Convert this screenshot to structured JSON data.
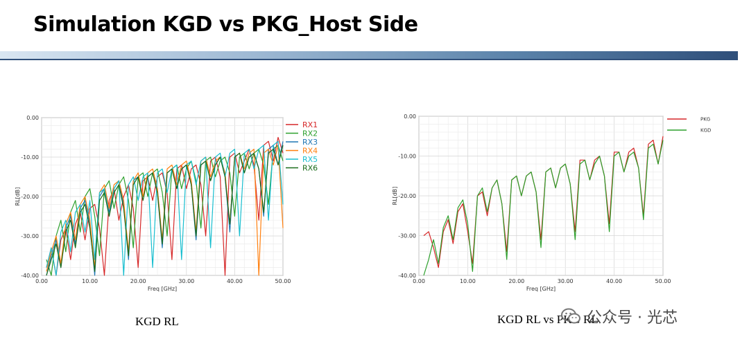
{
  "slide": {
    "title": "Simulation KGD vs PKG_Host Side",
    "caption_left": "KGD RL",
    "caption_right": "KGD RL vs PKG RL",
    "watermark": "公众号 · 光芯"
  },
  "chart_data": [
    {
      "type": "line",
      "xlabel": "Freq [GHz]",
      "ylabel": "RL[dB]",
      "xlim": [
        0,
        50
      ],
      "ylim": [
        -40,
        0
      ],
      "xticks": [
        "0.00",
        "10.00",
        "20.00",
        "30.00",
        "40.00",
        "50.00"
      ],
      "yticks": [
        "0.00",
        "-10.00",
        "-20.00",
        "-30.00",
        "-40.00"
      ],
      "grid": true,
      "legend_position": "right",
      "series": [
        {
          "name": "RX1",
          "color": "#d62728",
          "x": [
            1,
            2,
            3,
            4,
            5,
            6,
            7,
            8,
            9,
            10,
            11,
            12,
            13,
            14,
            15,
            16,
            17,
            18,
            19,
            20,
            21,
            22,
            23,
            24,
            25,
            26,
            27,
            28,
            29,
            30,
            31,
            32,
            33,
            34,
            35,
            36,
            37,
            38,
            39,
            40,
            41,
            42,
            43,
            44,
            45,
            46,
            47,
            48,
            49,
            50
          ],
          "y": [
            -38,
            -33,
            -40,
            -31,
            -28,
            -36,
            -27,
            -24,
            -31,
            -23,
            -22,
            -28,
            -40,
            -21,
            -18,
            -26,
            -20,
            -17,
            -23,
            -38,
            -16,
            -15,
            -21,
            -15,
            -14,
            -19,
            -36,
            -13,
            -12,
            -18,
            -13,
            -12,
            -17,
            -30,
            -11,
            -10,
            -15,
            -40,
            -10,
            -9,
            -14,
            -11,
            -8,
            -12,
            -26,
            -7,
            -6,
            -11,
            -5,
            -9
          ]
        },
        {
          "name": "RX2",
          "color": "#2ca02c",
          "x": [
            1,
            2,
            3,
            4,
            5,
            6,
            7,
            8,
            9,
            10,
            11,
            12,
            13,
            14,
            15,
            16,
            17,
            18,
            19,
            20,
            21,
            22,
            23,
            24,
            25,
            26,
            27,
            28,
            29,
            30,
            31,
            32,
            33,
            34,
            35,
            36,
            37,
            38,
            39,
            40,
            41,
            42,
            43,
            44,
            45,
            46,
            47,
            48,
            49,
            50
          ],
          "y": [
            -36,
            -40,
            -30,
            -26,
            -34,
            -24,
            -21,
            -29,
            -20,
            -18,
            -25,
            -35,
            -18,
            -16,
            -23,
            -17,
            -15,
            -21,
            -33,
            -15,
            -14,
            -20,
            -14,
            -13,
            -19,
            -30,
            -13,
            -12,
            -18,
            -13,
            -11,
            -16,
            -28,
            -11,
            -10,
            -15,
            -11,
            -10,
            -14,
            -25,
            -10,
            -9,
            -13,
            -9,
            -8,
            -12,
            -22,
            -8,
            -7,
            -11
          ]
        },
        {
          "name": "RX3",
          "color": "#1f77b4",
          "x": [
            1,
            2,
            3,
            4,
            5,
            6,
            7,
            8,
            9,
            10,
            11,
            12,
            13,
            14,
            15,
            16,
            17,
            18,
            19,
            20,
            21,
            22,
            23,
            24,
            25,
            26,
            27,
            28,
            29,
            30,
            31,
            32,
            33,
            34,
            35,
            36,
            37,
            38,
            39,
            40,
            41,
            42,
            43,
            44,
            45,
            46,
            47,
            48,
            49,
            50
          ],
          "y": [
            -40,
            -35,
            -31,
            -38,
            -28,
            -25,
            -32,
            -23,
            -21,
            -27,
            -40,
            -20,
            -18,
            -24,
            -18,
            -16,
            -22,
            -36,
            -16,
            -15,
            -20,
            -15,
            -14,
            -19,
            -33,
            -14,
            -13,
            -18,
            -13,
            -12,
            -17,
            -31,
            -12,
            -11,
            -16,
            -12,
            -10,
            -15,
            -29,
            -10,
            -9,
            -14,
            -10,
            -9,
            -13,
            -25,
            -8,
            -7,
            -12,
            -6
          ]
        },
        {
          "name": "RX4",
          "color": "#ff7f0e",
          "x": [
            1,
            2,
            3,
            4,
            5,
            6,
            7,
            8,
            9,
            10,
            11,
            12,
            13,
            14,
            15,
            16,
            17,
            18,
            19,
            20,
            21,
            22,
            23,
            24,
            25,
            26,
            27,
            28,
            29,
            30,
            31,
            32,
            33,
            34,
            35,
            36,
            37,
            38,
            39,
            40,
            41,
            42,
            43,
            44,
            45,
            46,
            47,
            48,
            49,
            50
          ],
          "y": [
            -39,
            -34,
            -30,
            -37,
            -27,
            -24,
            -31,
            -22,
            -20,
            -26,
            -38,
            -19,
            -17,
            -23,
            -17,
            -16,
            -21,
            -34,
            -16,
            -14,
            -20,
            -14,
            -13,
            -18,
            -31,
            -13,
            -12,
            -17,
            -12,
            -11,
            -16,
            -29,
            -11,
            -10,
            -15,
            -11,
            -10,
            -14,
            -27,
            -10,
            -9,
            -13,
            -9,
            -8,
            -40,
            -9,
            -8,
            -12,
            -7,
            -28
          ]
        },
        {
          "name": "RX5",
          "color": "#17becf",
          "x": [
            1,
            2,
            3,
            4,
            5,
            6,
            7,
            8,
            9,
            10,
            11,
            12,
            13,
            14,
            15,
            16,
            17,
            18,
            19,
            20,
            21,
            22,
            23,
            24,
            25,
            26,
            27,
            28,
            29,
            30,
            31,
            32,
            33,
            34,
            35,
            36,
            37,
            38,
            39,
            40,
            41,
            42,
            43,
            44,
            45,
            46,
            47,
            48,
            49,
            50
          ],
          "y": [
            -38,
            -33,
            -40,
            -29,
            -26,
            -34,
            -24,
            -22,
            -29,
            -21,
            -36,
            -19,
            -18,
            -25,
            -18,
            -16,
            -40,
            -17,
            -15,
            -21,
            -15,
            -14,
            -38,
            -14,
            -13,
            -19,
            -13,
            -12,
            -36,
            -12,
            -11,
            -17,
            -11,
            -10,
            -33,
            -10,
            -9,
            -15,
            -9,
            -8,
            -30,
            -9,
            -8,
            -13,
            -8,
            -7,
            -26,
            -7,
            -6,
            -22
          ]
        },
        {
          "name": "RX6",
          "color": "#1a6b1a",
          "x": [
            1,
            2,
            3,
            4,
            5,
            6,
            7,
            8,
            9,
            10,
            11,
            12,
            13,
            14,
            15,
            16,
            17,
            18,
            19,
            20,
            21,
            22,
            23,
            24,
            25,
            26,
            27,
            28,
            29,
            30,
            31,
            32,
            33,
            34,
            35,
            36,
            37,
            38,
            39,
            40,
            41,
            42,
            43,
            44,
            45,
            46,
            47,
            48,
            49,
            50
          ],
          "y": [
            -40,
            -36,
            -32,
            -38,
            -29,
            -26,
            -33,
            -24,
            -22,
            -28,
            -39,
            -21,
            -19,
            -25,
            -19,
            -17,
            -23,
            -35,
            -17,
            -15,
            -21,
            -15,
            -14,
            -19,
            -32,
            -14,
            -13,
            -18,
            -13,
            -12,
            -17,
            -30,
            -12,
            -11,
            -16,
            -12,
            -10,
            -15,
            -27,
            -10,
            -9,
            -14,
            -10,
            -9,
            -13,
            -24,
            -9,
            -8,
            -12,
            -7
          ]
        }
      ]
    },
    {
      "type": "line",
      "xlabel": "Freq [GHz]",
      "ylabel": "RL[dB]",
      "xlim": [
        0,
        50
      ],
      "ylim": [
        -40,
        0
      ],
      "xticks": [
        "0.00",
        "10.00",
        "20.00",
        "30.00",
        "40.00",
        "50.00"
      ],
      "yticks": [
        "0.00",
        "-10.00",
        "-20.00",
        "-30.00",
        "-40.00"
      ],
      "grid": true,
      "legend_position": "top-right",
      "series": [
        {
          "name": "PKG",
          "color": "#d62728",
          "x": [
            1,
            2,
            3,
            4,
            5,
            6,
            7,
            8,
            9,
            10,
            11,
            12,
            13,
            14,
            15,
            16,
            17,
            18,
            19,
            20,
            21,
            22,
            23,
            24,
            25,
            26,
            27,
            28,
            29,
            30,
            31,
            32,
            33,
            34,
            35,
            36,
            37,
            38,
            39,
            40,
            41,
            42,
            43,
            44,
            45,
            46,
            47,
            48,
            49,
            50
          ],
          "y": [
            -30,
            -29,
            -33,
            -38,
            -29,
            -26,
            -32,
            -24,
            -22,
            -29,
            -37,
            -20,
            -19,
            -25,
            -18,
            -16,
            -22,
            -34,
            -16,
            -15,
            -20,
            -15,
            -14,
            -19,
            -31,
            -14,
            -13,
            -18,
            -13,
            -12,
            -17,
            -29,
            -11,
            -11,
            -16,
            -11,
            -10,
            -15,
            -27,
            -9,
            -9,
            -14,
            -9,
            -8,
            -13,
            -25,
            -7,
            -6,
            -12,
            -5
          ]
        },
        {
          "name": "KGD",
          "color": "#2ca02c",
          "x": [
            1,
            2,
            3,
            4,
            5,
            6,
            7,
            8,
            9,
            10,
            11,
            12,
            13,
            14,
            15,
            16,
            17,
            18,
            19,
            20,
            21,
            22,
            23,
            24,
            25,
            26,
            27,
            28,
            29,
            30,
            31,
            32,
            33,
            34,
            35,
            36,
            37,
            38,
            39,
            40,
            41,
            42,
            43,
            44,
            45,
            46,
            47,
            48,
            49,
            50
          ],
          "y": [
            -40,
            -36,
            -31,
            -37,
            -28,
            -25,
            -31,
            -23,
            -21,
            -27,
            -39,
            -20,
            -18,
            -24,
            -18,
            -16,
            -22,
            -36,
            -16,
            -15,
            -20,
            -15,
            -14,
            -19,
            -33,
            -14,
            -13,
            -18,
            -13,
            -12,
            -17,
            -31,
            -12,
            -11,
            -16,
            -12,
            -10,
            -15,
            -29,
            -10,
            -9,
            -14,
            -10,
            -9,
            -13,
            -26,
            -8,
            -7,
            -12,
            -6
          ]
        }
      ]
    }
  ]
}
